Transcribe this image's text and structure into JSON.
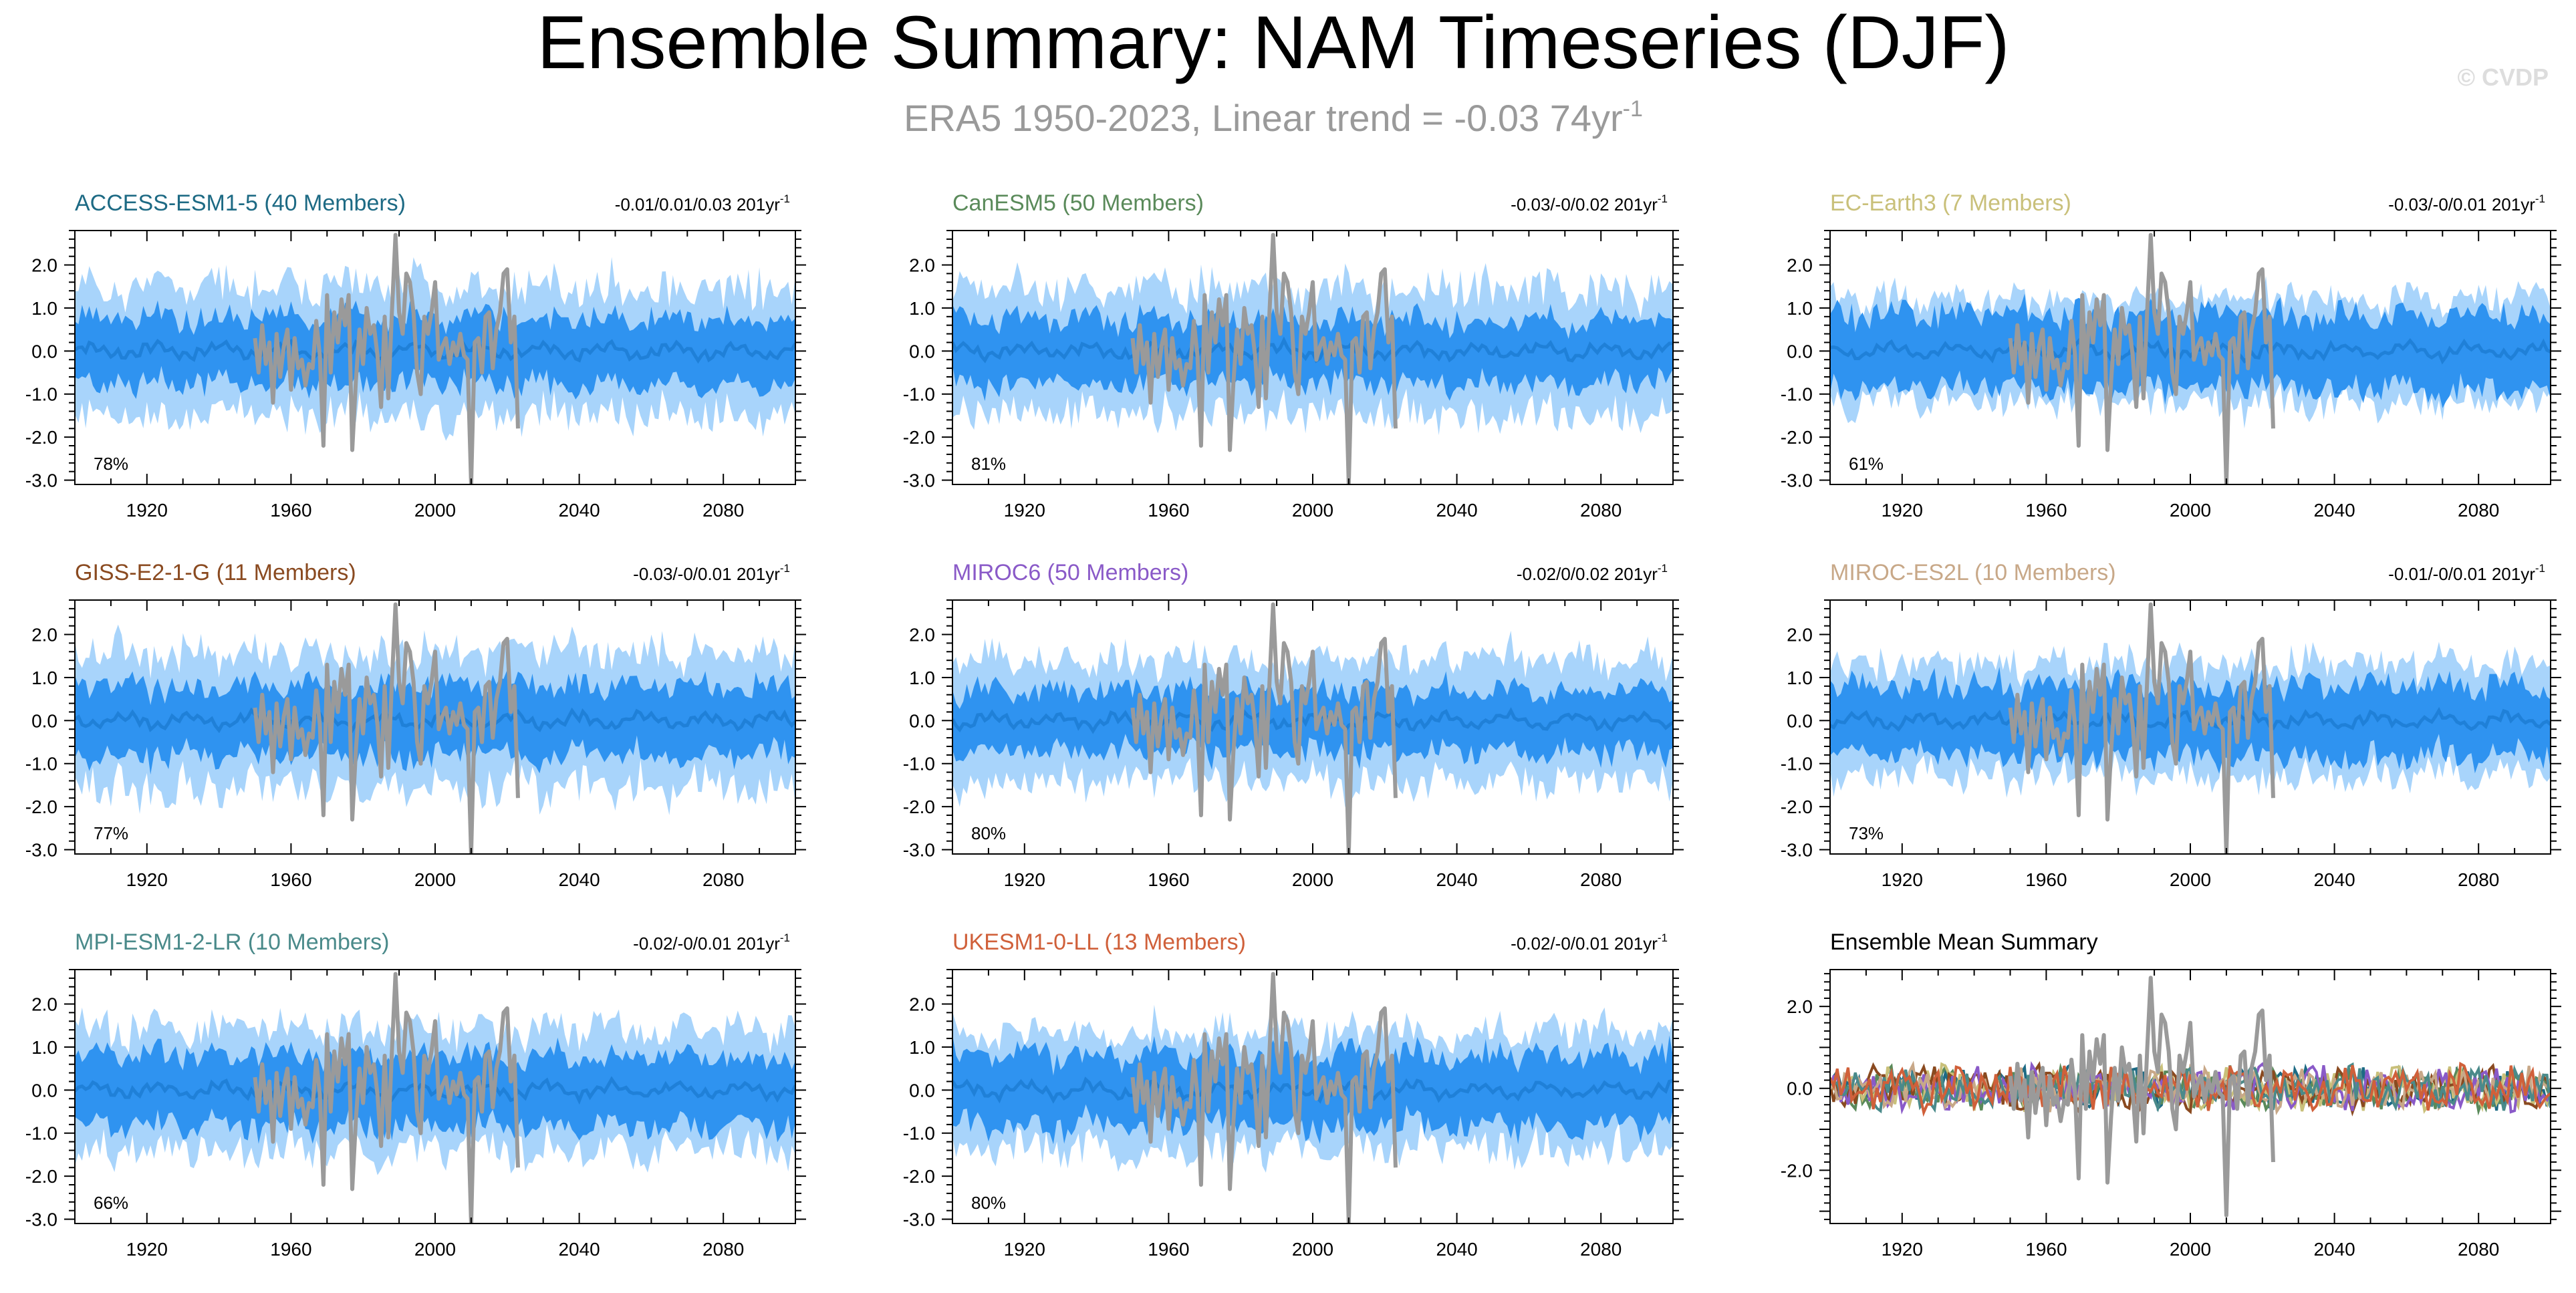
{
  "title": "Ensemble Summary: NAM Timeseries (DJF)",
  "subtitle_main": "ERA5 1950-2023, Linear trend = -0.03 74yr",
  "subtitle_sup": "-1",
  "watermark": "© CVDP",
  "colors": {
    "outer_band": "#a8d4fb",
    "inner_band": "#2f93f0",
    "ens_mean": "#1f80d8",
    "obs": "#9a9a9a"
  },
  "chart_data": [
    {
      "type": "area",
      "panel_title": "ACCESS-ESM1-5 (40 Members)",
      "title_color": "#1d6a84",
      "trend_text": "-0.01/0.01/0.03 201yr",
      "trend_sup": "-1",
      "percent": "78%",
      "x_range": [
        1900,
        2100
      ],
      "ylim": [
        -3.1,
        2.8
      ],
      "xticks": [
        1920,
        1960,
        2000,
        2040,
        2080
      ],
      "yticks": [
        2.0,
        1.0,
        0.0,
        -1.0,
        -2.0,
        -3.0
      ],
      "ytick_labels": [
        "2.0",
        "1.0",
        "0.0",
        "-1.0",
        "-2.0",
        "-3.0"
      ],
      "band_outer": 1.5,
      "band_inner": 0.85
    },
    {
      "type": "area",
      "panel_title": "CanESM5 (50 Members)",
      "title_color": "#5a8a5a",
      "trend_text": "-0.03/-0/0.02 201yr",
      "trend_sup": "-1",
      "percent": "81%",
      "x_range": [
        1900,
        2100
      ],
      "ylim": [
        -3.1,
        2.8
      ],
      "xticks": [
        1920,
        1960,
        2000,
        2040,
        2080
      ],
      "yticks": [
        2.0,
        1.0,
        0.0,
        -1.0,
        -2.0,
        -3.0
      ],
      "ytick_labels": [
        "2.0",
        "1.0",
        "0.0",
        "-1.0",
        "-2.0",
        "-3.0"
      ],
      "band_outer": 1.45,
      "band_inner": 0.8
    },
    {
      "type": "area",
      "panel_title": "EC-Earth3 (7 Members)",
      "title_color": "#c9c07a",
      "trend_text": "-0.03/-0/0.01 201yr",
      "trend_sup": "-1",
      "percent": "61%",
      "x_range": [
        1900,
        2100
      ],
      "ylim": [
        -3.1,
        2.8
      ],
      "xticks": [
        1920,
        1960,
        2000,
        2040,
        2080
      ],
      "yticks": [
        2.0,
        1.0,
        0.0,
        -1.0,
        -2.0,
        -3.0
      ],
      "ytick_labels": [
        "2.0",
        "1.0",
        "0.0",
        "-1.0",
        "-2.0",
        "-3.0"
      ],
      "band_outer": 1.2,
      "band_inner": 0.95
    },
    {
      "type": "area",
      "panel_title": "GISS-E2-1-G (11 Members)",
      "title_color": "#8a4a20",
      "trend_text": "-0.03/-0/0.01 201yr",
      "trend_sup": "-1",
      "percent": "77%",
      "x_range": [
        1900,
        2100
      ],
      "ylim": [
        -3.1,
        2.8
      ],
      "xticks": [
        1920,
        1960,
        2000,
        2040,
        2080
      ],
      "yticks": [
        2.0,
        1.0,
        0.0,
        -1.0,
        -2.0,
        -3.0
      ],
      "ytick_labels": [
        "2.0",
        "1.0",
        "0.0",
        "-1.0",
        "-2.0",
        "-3.0"
      ],
      "band_outer": 1.55,
      "band_inner": 0.9
    },
    {
      "type": "area",
      "panel_title": "MIROC6 (50 Members)",
      "title_color": "#8a5ac8",
      "trend_text": "-0.02/0/0.02 201yr",
      "trend_sup": "-1",
      "percent": "80%",
      "x_range": [
        1900,
        2100
      ],
      "ylim": [
        -3.1,
        2.8
      ],
      "xticks": [
        1920,
        1960,
        2000,
        2040,
        2080
      ],
      "yticks": [
        2.0,
        1.0,
        0.0,
        -1.0,
        -2.0,
        -3.0
      ],
      "ytick_labels": [
        "2.0",
        "1.0",
        "0.0",
        "-1.0",
        "-2.0",
        "-3.0"
      ],
      "band_outer": 1.4,
      "band_inner": 0.8
    },
    {
      "type": "area",
      "panel_title": "MIROC-ES2L (10 Members)",
      "title_color": "#c8a888",
      "trend_text": "-0.01/-0/0.01 201yr",
      "trend_sup": "-1",
      "percent": "73%",
      "x_range": [
        1900,
        2100
      ],
      "ylim": [
        -3.1,
        2.8
      ],
      "xticks": [
        1920,
        1960,
        2000,
        2040,
        2080
      ],
      "yticks": [
        2.0,
        1.0,
        0.0,
        -1.0,
        -2.0,
        -3.0
      ],
      "ytick_labels": [
        "2.0",
        "1.0",
        "0.0",
        "-1.0",
        "-2.0",
        "-3.0"
      ],
      "band_outer": 1.3,
      "band_inner": 0.9
    },
    {
      "type": "area",
      "panel_title": "MPI-ESM1-2-LR (10 Members)",
      "title_color": "#4a8a8a",
      "trend_text": "-0.02/-0/0.01 201yr",
      "trend_sup": "-1",
      "percent": "66%",
      "x_range": [
        1900,
        2100
      ],
      "ylim": [
        -3.1,
        2.8
      ],
      "xticks": [
        1920,
        1960,
        2000,
        2040,
        2080
      ],
      "yticks": [
        2.0,
        1.0,
        0.0,
        -1.0,
        -2.0,
        -3.0
      ],
      "ytick_labels": [
        "2.0",
        "1.0",
        "0.0",
        "-1.0",
        "-2.0",
        "-3.0"
      ],
      "band_outer": 1.4,
      "band_inner": 0.9
    },
    {
      "type": "area",
      "panel_title": "UKESM1-0-LL (13 Members)",
      "title_color": "#d0603a",
      "trend_text": "-0.02/-0/0.01 201yr",
      "trend_sup": "-1",
      "percent": "80%",
      "x_range": [
        1900,
        2100
      ],
      "ylim": [
        -3.1,
        2.8
      ],
      "xticks": [
        1920,
        1960,
        2000,
        2040,
        2080
      ],
      "yticks": [
        2.0,
        1.0,
        0.0,
        -1.0,
        -2.0,
        -3.0
      ],
      "ytick_labels": [
        "2.0",
        "1.0",
        "0.0",
        "-1.0",
        "-2.0",
        "-3.0"
      ],
      "band_outer": 1.35,
      "band_inner": 0.9
    },
    {
      "type": "line",
      "panel_title": "Ensemble Mean Summary",
      "title_color": "#000000",
      "trend_text": "",
      "trend_sup": "",
      "percent": "",
      "x_range": [
        1900,
        2100
      ],
      "ylim": [
        -3.3,
        2.9
      ],
      "xticks": [
        1920,
        1960,
        2000,
        2040,
        2080
      ],
      "yticks": [
        2.0,
        0.0,
        -2.0
      ],
      "ytick_labels": [
        "2.0",
        "0.0",
        "-2.0"
      ],
      "series_colors": [
        "#1d6a84",
        "#5a8a5a",
        "#c9c07a",
        "#8a4a20",
        "#8a5ac8",
        "#c8a888",
        "#4a8a8a",
        "#d0603a"
      ]
    }
  ],
  "obs_series": {
    "x_start": 1950,
    "values": [
      0.3,
      -0.5,
      0.6,
      -0.3,
      0.2,
      -1.2,
      0.4,
      -0.6,
      0.1,
      0.5,
      -0.9,
      0.3,
      -0.4,
      -0.2,
      -0.8,
      -0.3,
      -0.4,
      0.7,
      -0.1,
      -2.2,
      1.3,
      -0.5,
      0.9,
      0.2,
      1.2,
      0.6,
      1.3,
      -2.3,
      -0.7,
      0.5,
      -0.3,
      1.0,
      0.4,
      0.6,
      -0.1,
      -1.3,
      0.8,
      -1.1,
      0.9,
      2.7,
      0.9,
      0.4,
      1.8,
      1.6,
      0.9,
      -0.5,
      -1.0,
      0.8,
      0.4,
      0.9,
      1.6,
      -0.2,
      0.1,
      0.3,
      -0.3,
      0.2,
      -0.1,
      0.4,
      -0.1,
      -0.2,
      -3.1,
      0.2,
      0.3,
      -0.5,
      0.8,
      0.9,
      -0.4,
      0.5,
      0.9,
      1.8,
      1.9,
      0.2,
      0.8,
      -1.8
    ]
  }
}
